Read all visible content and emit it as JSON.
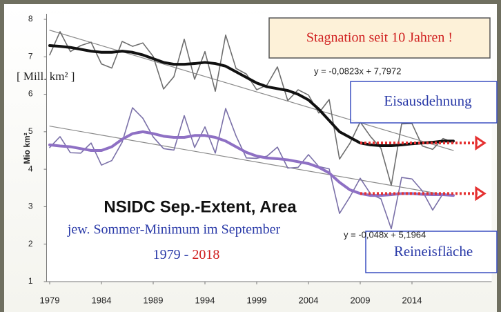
{
  "chart_data": {
    "type": "line",
    "title": "NSIDC Sep.-Extent, Area",
    "subtitle": "jew. Sommer-Minimum im September",
    "years_from": "1979",
    "years_sep": "-",
    "years_to": "2018",
    "annotation": "Stagnation seit 10 Jahren !",
    "unit_label": "[ Mill. km² ]",
    "ylabel": "Mio km²",
    "x": [
      1979,
      1980,
      1981,
      1982,
      1983,
      1984,
      1985,
      1986,
      1987,
      1988,
      1989,
      1990,
      1991,
      1992,
      1993,
      1994,
      1995,
      1996,
      1997,
      1998,
      1999,
      2000,
      2001,
      2002,
      2003,
      2004,
      2005,
      2006,
      2007,
      2008,
      2009,
      2010,
      2011,
      2012,
      2013,
      2014,
      2015,
      2016,
      2017,
      2018
    ],
    "series": [
      {
        "name": "Eisausdehnung",
        "color": "#6e6e6e",
        "values": [
          7.05,
          7.67,
          7.14,
          7.3,
          7.39,
          6.81,
          6.7,
          7.41,
          7.28,
          7.37,
          7.01,
          6.14,
          6.47,
          7.47,
          6.4,
          7.14,
          6.08,
          7.58,
          6.69,
          6.54,
          6.12,
          6.25,
          6.73,
          5.83,
          6.12,
          5.98,
          5.5,
          5.86,
          4.27,
          4.69,
          5.26,
          4.87,
          4.56,
          3.57,
          5.21,
          5.22,
          4.62,
          4.53,
          4.82,
          4.71
        ]
      },
      {
        "name": "Reineisfläche",
        "color": "#7a70a8",
        "values": [
          4.58,
          4.87,
          4.44,
          4.43,
          4.7,
          4.11,
          4.23,
          4.72,
          5.64,
          5.36,
          4.86,
          4.55,
          4.51,
          5.43,
          4.58,
          5.13,
          4.43,
          5.62,
          4.89,
          4.3,
          4.29,
          4.35,
          4.59,
          4.03,
          4.05,
          4.39,
          4.07,
          4.01,
          2.82,
          3.26,
          3.76,
          3.34,
          3.21,
          2.41,
          3.78,
          3.74,
          3.42,
          2.91,
          3.35,
          3.3
        ]
      }
    ],
    "smoothed": [
      {
        "color": "#111111",
        "values": [
          7.3,
          7.28,
          7.25,
          7.2,
          7.15,
          7.12,
          7.12,
          7.15,
          7.12,
          7.05,
          6.95,
          6.85,
          6.8,
          6.8,
          6.82,
          6.85,
          6.82,
          6.75,
          6.6,
          6.45,
          6.3,
          6.2,
          6.15,
          6.1,
          6.0,
          5.85,
          5.6,
          5.3,
          5.0,
          4.85,
          4.7,
          4.65,
          4.63,
          4.63,
          4.65,
          4.68,
          4.7,
          4.72,
          4.75,
          4.75
        ]
      },
      {
        "color": "#8e70c4",
        "values": [
          4.65,
          4.62,
          4.6,
          4.55,
          4.5,
          4.5,
          4.6,
          4.8,
          4.95,
          5.0,
          4.95,
          4.88,
          4.85,
          4.85,
          4.9,
          4.9,
          4.85,
          4.75,
          4.6,
          4.45,
          4.35,
          4.3,
          4.28,
          4.25,
          4.2,
          4.15,
          4.05,
          3.9,
          3.65,
          3.45,
          3.35,
          3.3,
          3.3,
          3.32,
          3.35,
          3.35,
          3.33,
          3.32,
          3.32,
          3.3
        ]
      }
    ],
    "trends": [
      {
        "label": "y = -0,0823x + 7,7972",
        "color": "#8a8a8a",
        "x": [
          1979,
          2018
        ],
        "values": [
          7.71,
          4.5
        ]
      },
      {
        "label": "y = -0,048x + 5,1964",
        "color": "#8a8a8a",
        "x": [
          1979,
          2018
        ],
        "values": [
          5.15,
          3.28
        ]
      }
    ],
    "arrows": [
      {
        "color": "#e53030",
        "x": [
          2009,
          2021
        ],
        "value": 4.7
      },
      {
        "color": "#e53030",
        "x": [
          2009,
          2021
        ],
        "value": 3.35
      }
    ],
    "xlim": [
      1978.7,
      2021.7
    ],
    "xticks": [
      1979,
      1984,
      1989,
      1994,
      1999,
      2004,
      2009,
      2014
    ],
    "ylim": [
      1,
      8
    ],
    "yticks": [
      1,
      2,
      3,
      4,
      5,
      6,
      7,
      8
    ]
  }
}
